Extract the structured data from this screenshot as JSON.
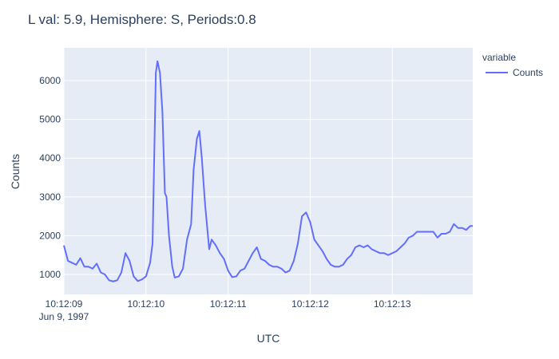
{
  "chart_data": {
    "type": "line",
    "title": "L val: 5.9, Hemisphere: S, Periods:0.8",
    "x_label": "UTC",
    "y_label": "Counts",
    "legend_title": "variable",
    "legend": "right",
    "grid": true,
    "x": [
      "1997-06-09 10:12:09.00",
      "1997-06-09 10:12:09.05",
      "1997-06-09 10:12:09.10",
      "1997-06-09 10:12:09.15",
      "1997-06-09 10:12:09.20",
      "1997-06-09 10:12:09.25",
      "1997-06-09 10:12:09.30",
      "1997-06-09 10:12:09.35",
      "1997-06-09 10:12:09.40",
      "1997-06-09 10:12:09.45",
      "1997-06-09 10:12:09.50",
      "1997-06-09 10:12:09.55",
      "1997-06-09 10:12:09.60",
      "1997-06-09 10:12:09.65",
      "1997-06-09 10:12:09.70",
      "1997-06-09 10:12:09.75",
      "1997-06-09 10:12:09.80",
      "1997-06-09 10:12:09.85",
      "1997-06-09 10:12:09.90",
      "1997-06-09 10:12:09.95",
      "1997-06-09 10:12:10.00",
      "1997-06-09 10:12:10.05",
      "1997-06-09 10:12:10.08",
      "1997-06-09 10:12:10.12",
      "1997-06-09 10:12:10.14",
      "1997-06-09 10:12:10.17",
      "1997-06-09 10:12:10.20",
      "1997-06-09 10:12:10.23",
      "1997-06-09 10:12:10.25",
      "1997-06-09 10:12:10.28",
      "1997-06-09 10:12:10.32",
      "1997-06-09 10:12:10.35",
      "1997-06-09 10:12:10.40",
      "1997-06-09 10:12:10.45",
      "1997-06-09 10:12:10.50",
      "1997-06-09 10:12:10.55",
      "1997-06-09 10:12:10.58",
      "1997-06-09 10:12:10.62",
      "1997-06-09 10:12:10.65",
      "1997-06-09 10:12:10.68",
      "1997-06-09 10:12:10.72",
      "1997-06-09 10:12:10.77",
      "1997-06-09 10:12:10.80",
      "1997-06-09 10:12:10.85",
      "1997-06-09 10:12:10.90",
      "1997-06-09 10:12:10.95",
      "1997-06-09 10:12:11.00",
      "1997-06-09 10:12:11.05",
      "1997-06-09 10:12:11.10",
      "1997-06-09 10:12:11.15",
      "1997-06-09 10:12:11.20",
      "1997-06-09 10:12:11.25",
      "1997-06-09 10:12:11.30",
      "1997-06-09 10:12:11.35",
      "1997-06-09 10:12:11.40",
      "1997-06-09 10:12:11.45",
      "1997-06-09 10:12:11.50",
      "1997-06-09 10:12:11.55",
      "1997-06-09 10:12:11.60",
      "1997-06-09 10:12:11.65",
      "1997-06-09 10:12:11.70",
      "1997-06-09 10:12:11.75",
      "1997-06-09 10:12:11.80",
      "1997-06-09 10:12:11.85",
      "1997-06-09 10:12:11.90",
      "1997-06-09 10:12:11.95",
      "1997-06-09 10:12:12.00",
      "1997-06-09 10:12:12.05",
      "1997-06-09 10:12:12.10",
      "1997-06-09 10:12:12.15",
      "1997-06-09 10:12:12.20",
      "1997-06-09 10:12:12.25",
      "1997-06-09 10:12:12.30",
      "1997-06-09 10:12:12.35",
      "1997-06-09 10:12:12.40",
      "1997-06-09 10:12:12.45",
      "1997-06-09 10:12:12.50",
      "1997-06-09 10:12:12.55",
      "1997-06-09 10:12:12.60",
      "1997-06-09 10:12:12.65",
      "1997-06-09 10:12:12.70",
      "1997-06-09 10:12:12.75",
      "1997-06-09 10:12:12.80",
      "1997-06-09 10:12:12.85",
      "1997-06-09 10:12:12.90",
      "1997-06-09 10:12:12.95",
      "1997-06-09 10:12:13.00",
      "1997-06-09 10:12:13.05",
      "1997-06-09 10:12:13.10",
      "1997-06-09 10:12:13.15",
      "1997-06-09 10:12:13.20",
      "1997-06-09 10:12:13.25",
      "1997-06-09 10:12:13.30",
      "1997-06-09 10:12:13.35",
      "1997-06-09 10:12:13.40",
      "1997-06-09 10:12:13.45",
      "1997-06-09 10:12:13.50",
      "1997-06-09 10:12:13.55",
      "1997-06-09 10:12:13.60",
      "1997-06-09 10:12:13.65",
      "1997-06-09 10:12:13.70",
      "1997-06-09 10:12:13.75",
      "1997-06-09 10:12:13.80",
      "1997-06-09 10:12:13.85",
      "1997-06-09 10:12:13.90",
      "1997-06-09 10:12:13.95",
      "1997-06-09 10:12:13.98"
    ],
    "series": [
      {
        "name": "Counts",
        "color": "#636efa",
        "values": [
          1750,
          1350,
          1300,
          1250,
          1420,
          1200,
          1200,
          1150,
          1280,
          1050,
          1000,
          850,
          820,
          850,
          1050,
          1550,
          1350,
          950,
          830,
          870,
          950,
          1300,
          1800,
          6200,
          6500,
          6200,
          5200,
          3100,
          3000,
          2000,
          1200,
          920,
          950,
          1150,
          1900,
          2300,
          3700,
          4500,
          4700,
          4000,
          2800,
          1650,
          1900,
          1750,
          1550,
          1400,
          1100,
          930,
          950,
          1100,
          1150,
          1350,
          1550,
          1700,
          1400,
          1350,
          1250,
          1200,
          1200,
          1150,
          1050,
          1100,
          1350,
          1800,
          2500,
          2600,
          2350,
          1900,
          1750,
          1600,
          1400,
          1250,
          1200,
          1200,
          1250,
          1400,
          1500,
          1700,
          1750,
          1700,
          1750,
          1650,
          1600,
          1550,
          1550,
          1500,
          1550,
          1600,
          1700,
          1800,
          1950,
          2000,
          2100,
          2100,
          2100,
          2100,
          2100,
          1950,
          2050,
          2050,
          2100,
          2300,
          2200,
          2200,
          2150,
          2250,
          2250
        ]
      }
    ],
    "xlim": [
      "1997-06-09 10:12:09.00",
      "1997-06-09 10:12:13.98"
    ],
    "xticks": [
      {
        "value": "1997-06-09 10:12:09.00",
        "label": "10:12:09"
      },
      {
        "value": "1997-06-09 10:12:10.00",
        "label": "10:12:10"
      },
      {
        "value": "1997-06-09 10:12:11.00",
        "label": "10:12:11"
      },
      {
        "value": "1997-06-09 10:12:12.00",
        "label": "10:12:12"
      },
      {
        "value": "1997-06-09 10:12:13.00",
        "label": "10:12:13"
      }
    ],
    "xtick_date": "Jun 9, 1997",
    "ylim": [
      486,
      6844
    ],
    "yticks": [
      1000,
      2000,
      3000,
      4000,
      5000,
      6000
    ]
  }
}
